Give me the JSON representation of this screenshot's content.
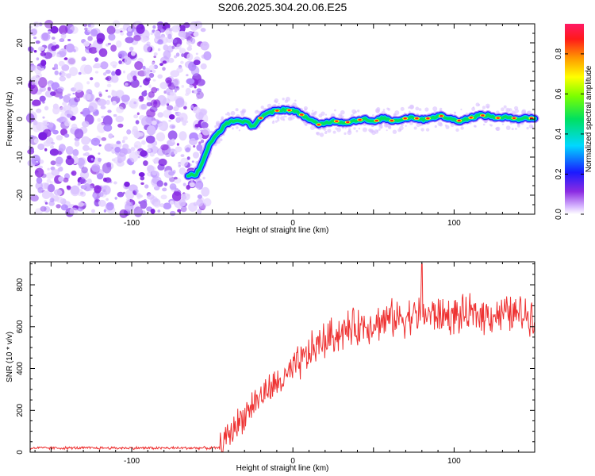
{
  "title": "S206.2025.304.20.06.E25",
  "chart_data": [
    {
      "type": "heatmap",
      "name": "spectrogram",
      "xlabel": "Height of straight line (km)",
      "ylabel": "Frequency (Hz)",
      "xlim": [
        -163,
        150
      ],
      "ylim": [
        -25,
        25
      ],
      "x_ticks": [
        -100,
        0,
        100
      ],
      "y_ticks": [
        -20,
        -10,
        0,
        10,
        20
      ],
      "colorbar": {
        "label": "Normalized spectral amplitude",
        "range": [
          0.0,
          0.95
        ],
        "ticks": [
          0.0,
          0.2,
          0.4,
          0.6,
          0.8
        ],
        "tick_labels": [
          "0.0",
          "0.2",
          "0.4",
          "0.6",
          "0.8"
        ]
      },
      "noise_region_x": [
        -163,
        -53
      ],
      "ridge": {
        "x": [
          -65,
          -60,
          -57,
          -55,
          -52,
          -48,
          -45,
          -42,
          -38,
          -32,
          -28,
          -25,
          -22,
          -18,
          -12,
          -6,
          0,
          4,
          8,
          12,
          16,
          20,
          26,
          32,
          38,
          44,
          50,
          56,
          62,
          68,
          74,
          80,
          86,
          92,
          98,
          104,
          110,
          116,
          122,
          128,
          134,
          140,
          146,
          150
        ],
        "freq": [
          -14.8,
          -14.5,
          -12.5,
          -10.0,
          -7.0,
          -4.5,
          -3.0,
          -1.5,
          -0.5,
          -0.5,
          -1.0,
          -2.0,
          -0.5,
          1.0,
          2.0,
          2.5,
          2.2,
          1.5,
          0.5,
          -0.5,
          -1.5,
          -1.0,
          -0.5,
          -1.0,
          -0.5,
          0.0,
          -0.8,
          0.3,
          -0.5,
          0.0,
          0.5,
          -0.2,
          0.4,
          0.8,
          0.0,
          -0.5,
          0.3,
          1.0,
          0.8,
          0.2,
          0.5,
          0.0,
          0.3,
          0.2
        ]
      }
    },
    {
      "type": "line",
      "name": "snr",
      "xlabel": "Height of straight line (km)",
      "ylabel": "SNR (10 * v/v)",
      "xlim": [
        -163,
        150
      ],
      "ylim": [
        0,
        910
      ],
      "x_ticks": [
        -100,
        0,
        100
      ],
      "y_ticks": [
        0,
        200,
        400,
        600,
        800
      ],
      "color": "#ee3333",
      "trend": {
        "x": [
          -163,
          -45,
          -42,
          -35,
          -25,
          -15,
          -5,
          5,
          15,
          25,
          40,
          60,
          80,
          100,
          120,
          150
        ],
        "y": [
          20,
          20,
          60,
          130,
          230,
          300,
          350,
          430,
          510,
          560,
          600,
          635,
          660,
          650,
          660,
          660
        ]
      },
      "peak": {
        "x": 80,
        "y": 900
      }
    }
  ]
}
